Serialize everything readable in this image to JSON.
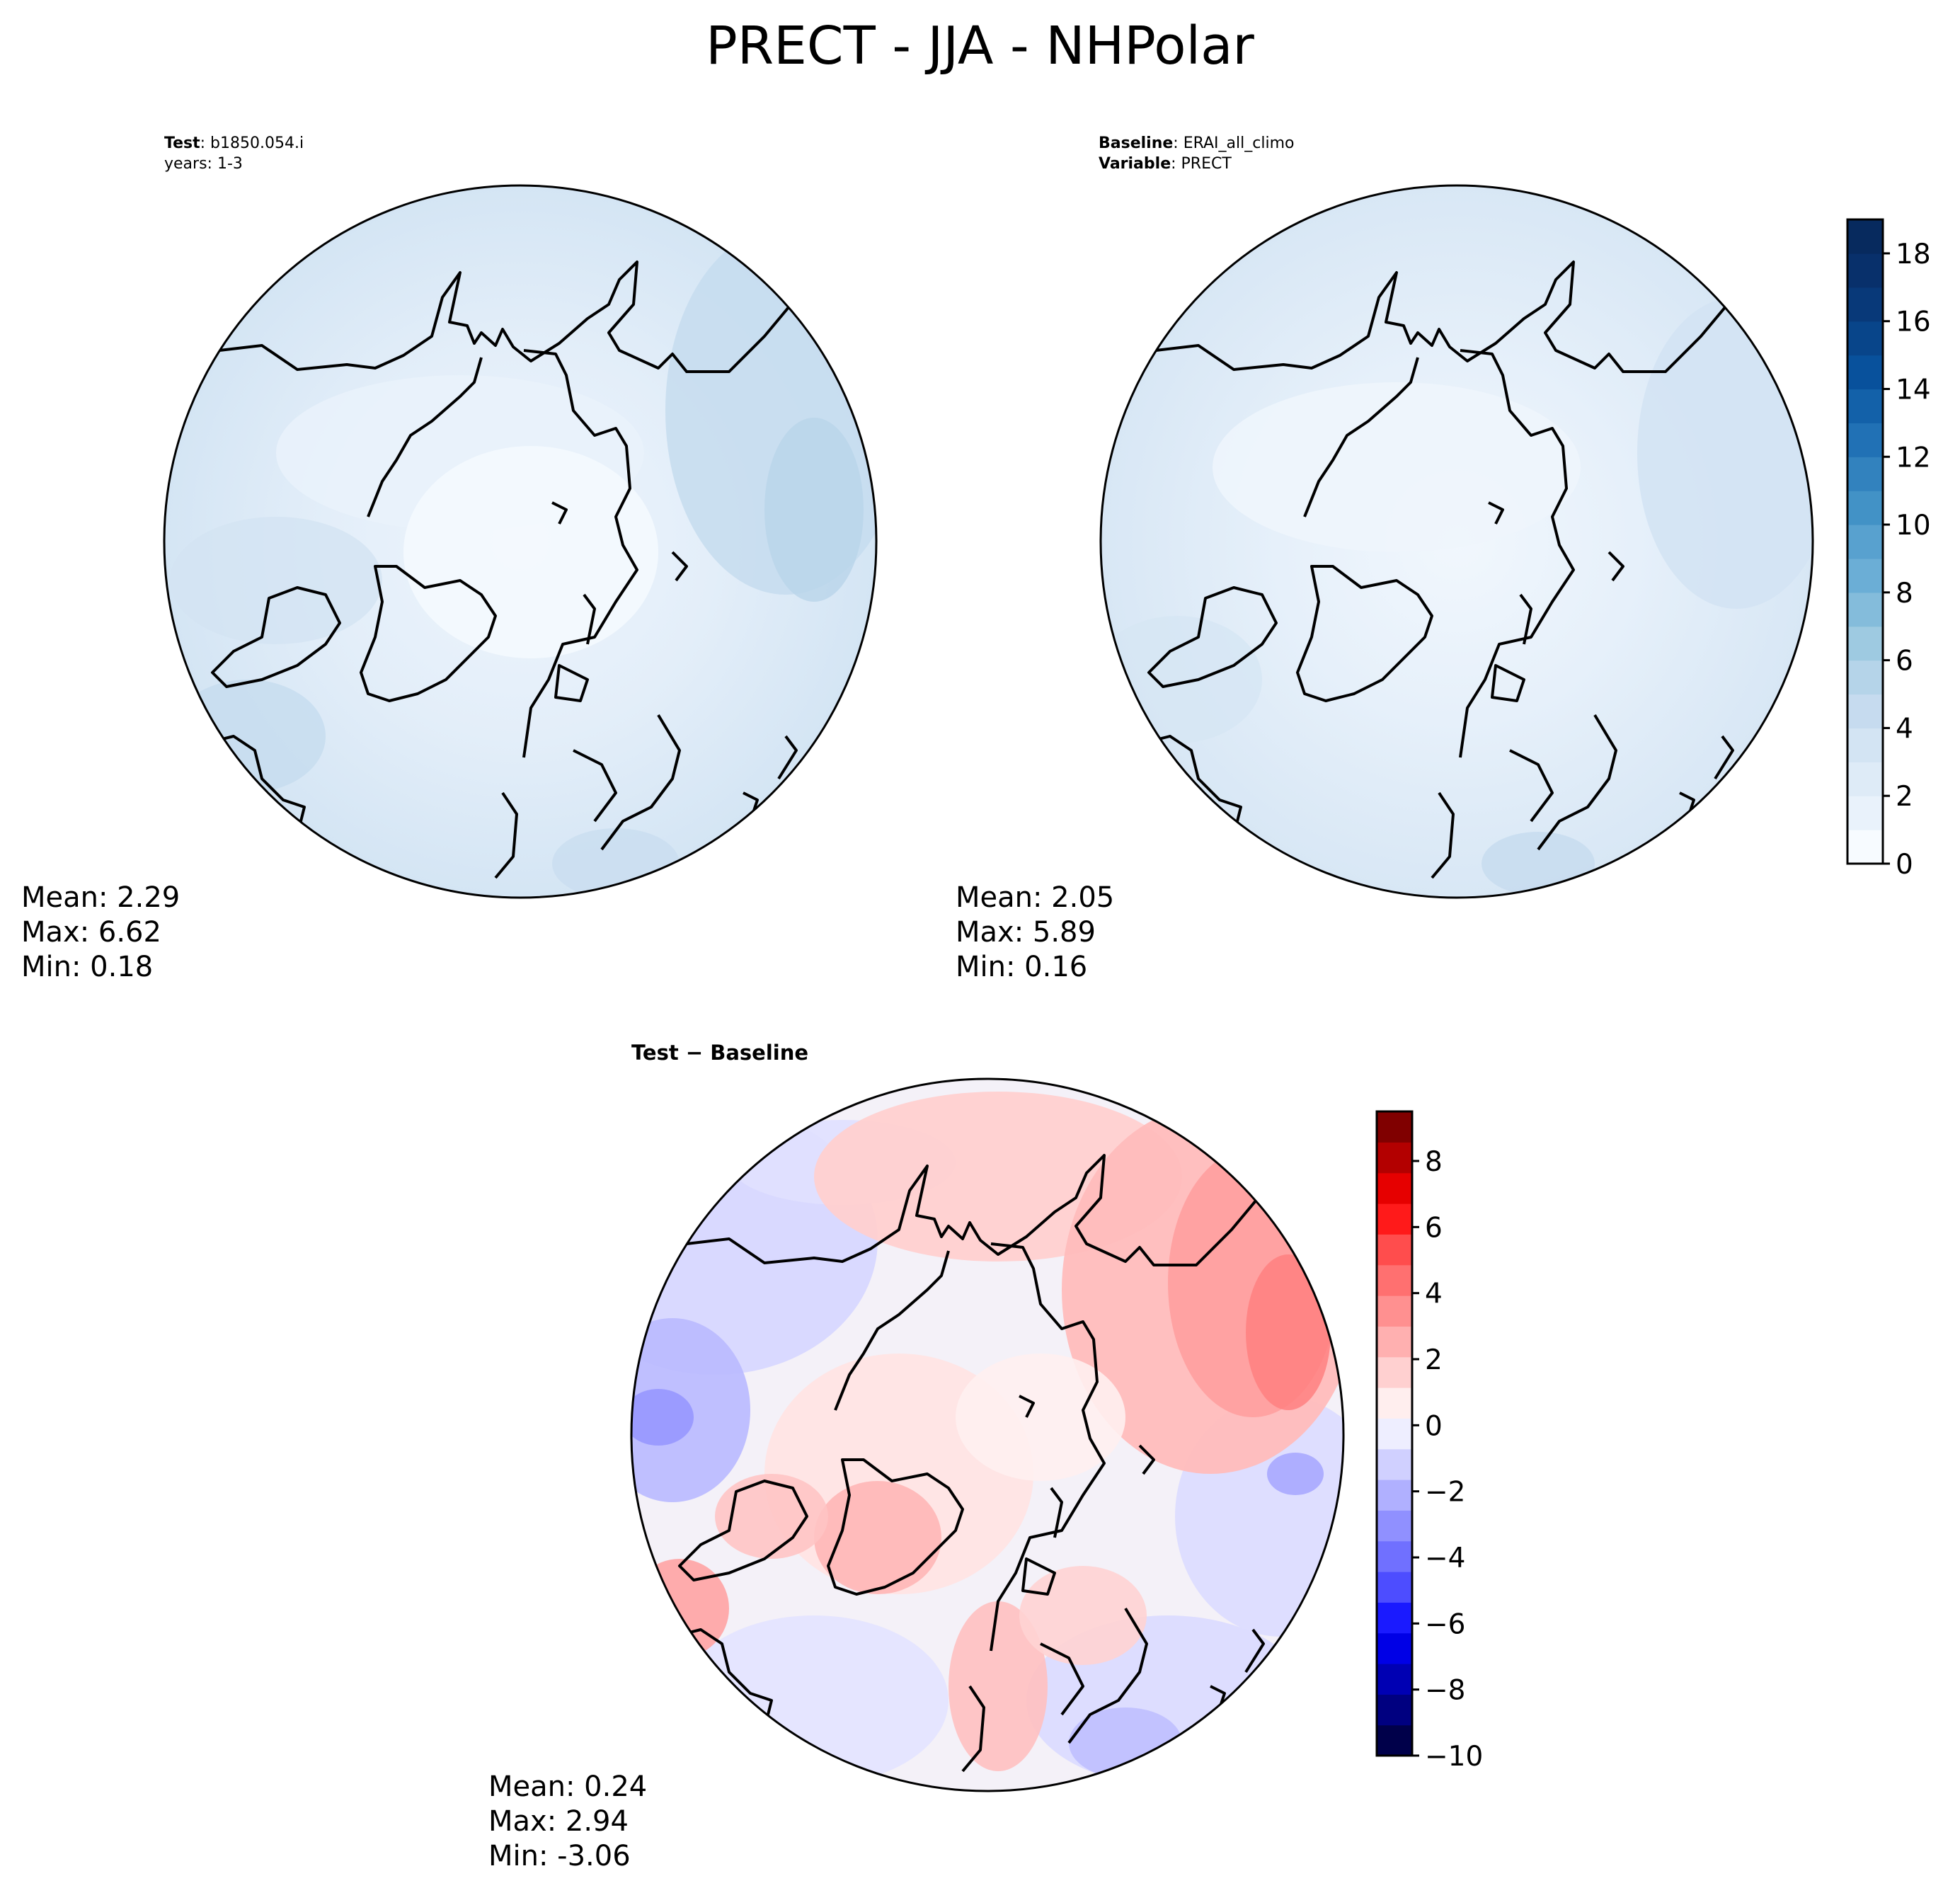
{
  "figure": {
    "title": "PRECT - JJA - NHPolar"
  },
  "panels": {
    "test": {
      "label_key": "Test",
      "label_val": "b1850.054.i",
      "years": "years: 1-3",
      "mean": "Mean:  2.29",
      "max": "Max:  6.62",
      "min": "Min:  0.18"
    },
    "baseline": {
      "label_key": "Baseline",
      "label_val": "ERAI_all_climo",
      "var_key": "Variable",
      "var_val": "PRECT",
      "mean": "Mean:  2.05",
      "max": "Max:  5.89",
      "min": "Min:  0.16"
    },
    "diff": {
      "title": "Test − Baseline",
      "mean": "Mean:  0.24",
      "max": "Max:  2.94",
      "min": "Min: -3.06"
    }
  },
  "colors": {
    "blues": [
      "#f7fbff",
      "#e9f2fb",
      "#deebf7",
      "#d3e4f3",
      "#c6dbef",
      "#b5d4e9",
      "#9ecae1",
      "#84bcdb",
      "#6baed6",
      "#58a1cf",
      "#4292c6",
      "#3282be",
      "#2171b5",
      "#1361a9",
      "#08519c",
      "#08458a",
      "#083979",
      "#08306b",
      "#072a5e"
    ],
    "bwr": [
      "#00004a",
      "#000080",
      "#0000b3",
      "#0000e6",
      "#1a1aff",
      "#4d4dff",
      "#7070ff",
      "#9090ff",
      "#b0b0ff",
      "#d0d0ff",
      "#eeeeff",
      "#ffeeee",
      "#ffd0d0",
      "#ffb0b0",
      "#ff9090",
      "#ff7070",
      "#ff4d4d",
      "#ff1a1a",
      "#e60000",
      "#b30000",
      "#800000"
    ]
  },
  "chart_data": [
    {
      "type": "heatmap",
      "name": "Test",
      "projection": "North Polar Stereographic",
      "stats": {
        "mean": 2.29,
        "max": 6.62,
        "min": 0.18
      },
      "colormap": "Blues",
      "colorbar_ticks": [
        0,
        2,
        4,
        6,
        8,
        10,
        12,
        14,
        16,
        18
      ],
      "range": [
        0,
        19
      ]
    },
    {
      "type": "heatmap",
      "name": "Baseline",
      "projection": "North Polar Stereographic",
      "stats": {
        "mean": 2.05,
        "max": 5.89,
        "min": 0.16
      },
      "colormap": "Blues",
      "colorbar_ticks": [
        0,
        2,
        4,
        6,
        8,
        10,
        12,
        14,
        16,
        18
      ],
      "range": [
        0,
        19
      ]
    },
    {
      "type": "heatmap",
      "name": "Test − Baseline",
      "projection": "North Polar Stereographic",
      "stats": {
        "mean": 0.24,
        "max": 2.94,
        "min": -3.06
      },
      "colormap": "bwr",
      "colorbar_ticks": [
        -10,
        -8,
        -6,
        -4,
        -2,
        0,
        2,
        4,
        6,
        8
      ],
      "range": [
        -10,
        9.5
      ]
    }
  ]
}
